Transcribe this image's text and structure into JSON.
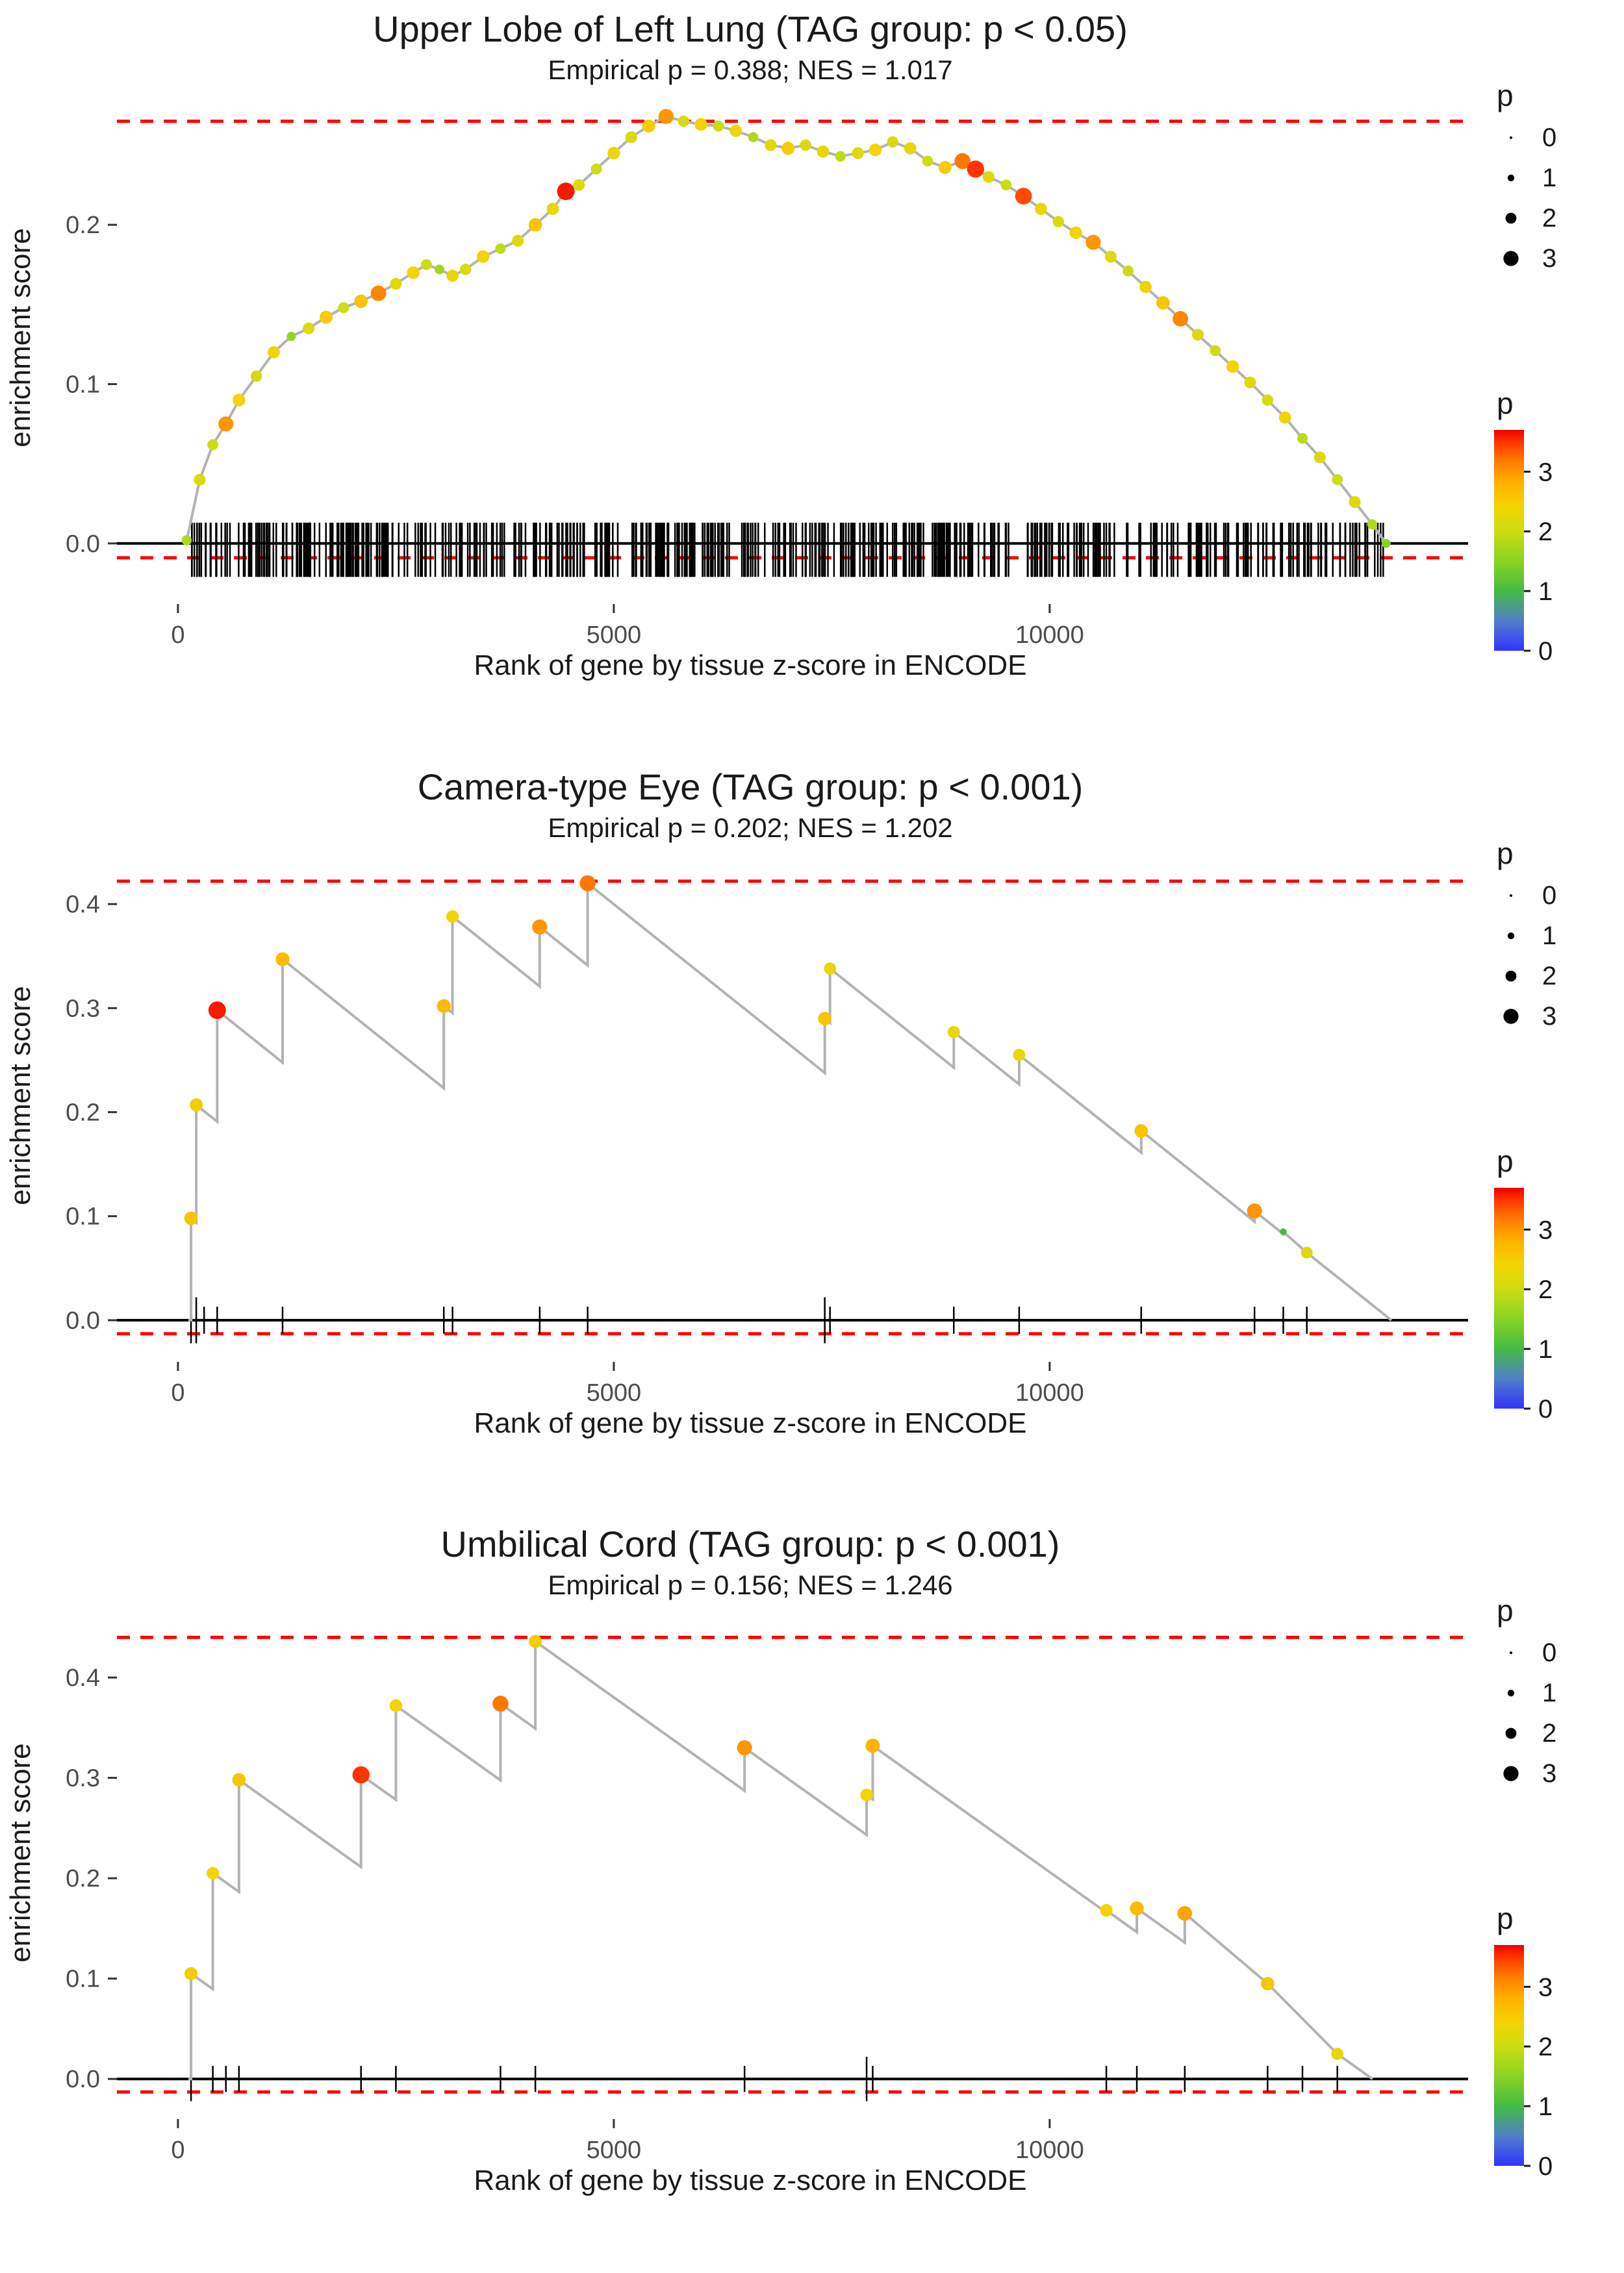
{
  "legend": {
    "size_title": "p",
    "size_items": [
      {
        "label": "0",
        "p": 0
      },
      {
        "label": "1",
        "p": 1
      },
      {
        "label": "2",
        "p": 2
      },
      {
        "label": "3",
        "p": 3
      }
    ],
    "color_title": "p",
    "color_ticks": [
      {
        "label": "3",
        "p": 3
      },
      {
        "label": "2",
        "p": 2
      },
      {
        "label": "1",
        "p": 1
      },
      {
        "label": "0",
        "p": 0
      }
    ]
  },
  "colors": {
    "dashed_line": "#ff0000",
    "zero_line": "#000000",
    "curve_line": "#b3b3b3",
    "rug": "#000000",
    "axis_text": "#4d4d4d",
    "tick_mark": "#333333",
    "p_max": 3.7,
    "p_scale_stops": [
      {
        "p": 0.0,
        "color": "#3333ff"
      },
      {
        "p": 0.5,
        "color": "#4f7fc9"
      },
      {
        "p": 1.0,
        "color": "#44bb44"
      },
      {
        "p": 1.5,
        "color": "#88d422"
      },
      {
        "p": 2.0,
        "color": "#ccdd11"
      },
      {
        "p": 2.4,
        "color": "#f2d500"
      },
      {
        "p": 2.8,
        "color": "#ffb300"
      },
      {
        "p": 3.2,
        "color": "#ff7700"
      },
      {
        "p": 3.5,
        "color": "#ff3300"
      },
      {
        "p": 3.7,
        "color": "#ee0000"
      }
    ]
  },
  "chart_data": [
    {
      "type": "line",
      "title": "Upper Lobe of Left Lung (TAG group: p < 0.05)",
      "subtitle": "Empirical p = 0.388; NES = 1.017",
      "xlabel": "Rank of gene by tissue z-score in ENCODE",
      "ylabel": "enrichment score",
      "xlim": [
        -700,
        14800
      ],
      "ylim": [
        -0.038,
        0.282
      ],
      "xticks": [
        {
          "v": 0,
          "label": "0"
        },
        {
          "v": 5000,
          "label": "5000"
        },
        {
          "v": 10000,
          "label": "10000"
        }
      ],
      "yticks": [
        {
          "v": 0.0,
          "label": "0.0"
        },
        {
          "v": 0.1,
          "label": "0.1"
        },
        {
          "v": 0.2,
          "label": "0.2"
        }
      ],
      "hline_top": 0.265,
      "hline_bottom": -0.009,
      "line_type": "polyline",
      "points_format": [
        "rank",
        "enrichment_score",
        "p"
      ],
      "points": [
        [
          100,
          0.002,
          1.8
        ],
        [
          250,
          0.04,
          2.2
        ],
        [
          400,
          0.062,
          2.0
        ],
        [
          550,
          0.075,
          3.0
        ],
        [
          700,
          0.09,
          2.4
        ],
        [
          900,
          0.105,
          2.1
        ],
        [
          1100,
          0.12,
          2.3
        ],
        [
          1300,
          0.13,
          1.6
        ],
        [
          1500,
          0.135,
          2.2
        ],
        [
          1700,
          0.142,
          2.5
        ],
        [
          1900,
          0.148,
          2.0
        ],
        [
          2100,
          0.152,
          2.6
        ],
        [
          2300,
          0.157,
          3.1
        ],
        [
          2500,
          0.163,
          2.2
        ],
        [
          2700,
          0.17,
          2.4
        ],
        [
          2850,
          0.175,
          2.0
        ],
        [
          3000,
          0.172,
          1.7
        ],
        [
          3150,
          0.168,
          2.3
        ],
        [
          3300,
          0.172,
          2.1
        ],
        [
          3500,
          0.18,
          2.4
        ],
        [
          3700,
          0.185,
          1.9
        ],
        [
          3900,
          0.19,
          2.2
        ],
        [
          4100,
          0.2,
          2.6
        ],
        [
          4300,
          0.21,
          2.3
        ],
        [
          4450,
          0.221,
          3.6
        ],
        [
          4600,
          0.225,
          2.2
        ],
        [
          4800,
          0.235,
          2.0
        ],
        [
          5000,
          0.245,
          2.4
        ],
        [
          5200,
          0.255,
          2.2
        ],
        [
          5400,
          0.262,
          2.5
        ],
        [
          5600,
          0.268,
          3.0
        ],
        [
          5800,
          0.265,
          2.1
        ],
        [
          6000,
          0.263,
          2.4
        ],
        [
          6200,
          0.262,
          2.0
        ],
        [
          6400,
          0.259,
          2.3
        ],
        [
          6600,
          0.255,
          1.8
        ],
        [
          6800,
          0.25,
          2.2
        ],
        [
          7000,
          0.248,
          2.5
        ],
        [
          7200,
          0.25,
          2.1
        ],
        [
          7400,
          0.246,
          2.3
        ],
        [
          7600,
          0.243,
          1.9
        ],
        [
          7800,
          0.245,
          2.2
        ],
        [
          8000,
          0.247,
          2.4
        ],
        [
          8200,
          0.252,
          2.1
        ],
        [
          8400,
          0.248,
          2.3
        ],
        [
          8600,
          0.24,
          2.0
        ],
        [
          8800,
          0.236,
          2.5
        ],
        [
          9000,
          0.24,
          3.2
        ],
        [
          9150,
          0.235,
          3.5
        ],
        [
          9300,
          0.23,
          2.2
        ],
        [
          9500,
          0.225,
          2.0
        ],
        [
          9700,
          0.218,
          3.4
        ],
        [
          9900,
          0.21,
          2.3
        ],
        [
          10100,
          0.202,
          2.1
        ],
        [
          10300,
          0.195,
          2.4
        ],
        [
          10500,
          0.189,
          3.0
        ],
        [
          10700,
          0.18,
          2.2
        ],
        [
          10900,
          0.171,
          2.0
        ],
        [
          11100,
          0.161,
          2.3
        ],
        [
          11300,
          0.151,
          2.6
        ],
        [
          11500,
          0.141,
          3.1
        ],
        [
          11700,
          0.131,
          2.2
        ],
        [
          11900,
          0.121,
          2.0
        ],
        [
          12100,
          0.111,
          2.4
        ],
        [
          12300,
          0.101,
          2.2
        ],
        [
          12500,
          0.09,
          2.1
        ],
        [
          12700,
          0.079,
          2.3
        ],
        [
          12900,
          0.066,
          1.9
        ],
        [
          13100,
          0.054,
          2.2
        ],
        [
          13300,
          0.04,
          2.0
        ],
        [
          13500,
          0.026,
          2.2
        ],
        [
          13700,
          0.012,
          1.8
        ],
        [
          13860,
          0.0,
          1.5
        ]
      ],
      "rug": {
        "mode": "dense",
        "count": 520,
        "min": 150,
        "max": 13860,
        "seed": 11,
        "center": -0.004,
        "half_height": 0.017
      }
    },
    {
      "type": "line",
      "title": "Camera-type Eye (TAG group: p < 0.001)",
      "subtitle": "Empirical p = 0.202; NES = 1.202",
      "xlabel": "Rank of gene by tissue z-score in ENCODE",
      "ylabel": "enrichment score",
      "xlim": [
        -700,
        14800
      ],
      "ylim": [
        -0.04,
        0.45
      ],
      "xticks": [
        {
          "v": 0,
          "label": "0"
        },
        {
          "v": 5000,
          "label": "5000"
        },
        {
          "v": 10000,
          "label": "10000"
        }
      ],
      "yticks": [
        {
          "v": 0.0,
          "label": "0.0"
        },
        {
          "v": 0.1,
          "label": "0.1"
        },
        {
          "v": 0.2,
          "label": "0.2"
        },
        {
          "v": 0.3,
          "label": "0.3"
        },
        {
          "v": 0.4,
          "label": "0.4"
        }
      ],
      "hline_top": 0.422,
      "hline_bottom": -0.013,
      "line_type": "sawtooth",
      "slope": 6.7e-05,
      "points_format": [
        "rank",
        "enrichment_score",
        "p"
      ],
      "points": [
        [
          150,
          0.098,
          2.6
        ],
        [
          210,
          0.207,
          2.5
        ],
        [
          450,
          0.298,
          3.6
        ],
        [
          1200,
          0.347,
          2.7
        ],
        [
          3050,
          0.302,
          2.7
        ],
        [
          3150,
          0.388,
          2.4
        ],
        [
          4150,
          0.378,
          3.0
        ],
        [
          4700,
          0.42,
          3.2
        ],
        [
          7420,
          0.29,
          2.6
        ],
        [
          7480,
          0.338,
          2.3
        ],
        [
          8900,
          0.277,
          2.3
        ],
        [
          9650,
          0.255,
          2.3
        ],
        [
          11050,
          0.182,
          2.6
        ],
        [
          12350,
          0.105,
          3.0
        ],
        [
          12680,
          0.085,
          1.0
        ],
        [
          12950,
          0.065,
          2.2
        ]
      ],
      "rug": {
        "mode": "list",
        "center": 0,
        "half_height": 0.013,
        "positions": [
          150,
          210,
          300,
          450,
          1200,
          3050,
          3150,
          4150,
          4700,
          7420,
          7480,
          8900,
          9650,
          11050,
          12350,
          12680,
          12950
        ],
        "tall_positions": [
          150,
          210,
          7420
        ]
      }
    },
    {
      "type": "line",
      "title": "Umbilical Cord (TAG group: p < 0.001)",
      "subtitle": "Empirical p = 0.156; NES = 1.246",
      "xlabel": "Rank of gene by tissue z-score in ENCODE",
      "ylabel": "enrichment score",
      "xlim": [
        -700,
        14800
      ],
      "ylim": [
        -0.04,
        0.468
      ],
      "xticks": [
        {
          "v": 0,
          "label": "0"
        },
        {
          "v": 5000,
          "label": "5000"
        },
        {
          "v": 10000,
          "label": "10000"
        }
      ],
      "yticks": [
        {
          "v": 0.0,
          "label": "0.0"
        },
        {
          "v": 0.1,
          "label": "0.1"
        },
        {
          "v": 0.2,
          "label": "0.2"
        },
        {
          "v": 0.3,
          "label": "0.3"
        },
        {
          "v": 0.4,
          "label": "0.4"
        }
      ],
      "hline_top": 0.44,
      "hline_bottom": -0.013,
      "line_type": "sawtooth",
      "slope": 6.2e-05,
      "points_format": [
        "rank",
        "enrichment_score",
        "p"
      ],
      "points": [
        [
          150,
          0.105,
          2.5
        ],
        [
          400,
          0.205,
          2.4
        ],
        [
          700,
          0.298,
          2.6
        ],
        [
          2100,
          0.303,
          3.5
        ],
        [
          2500,
          0.372,
          2.4
        ],
        [
          3700,
          0.374,
          3.2
        ],
        [
          4100,
          0.436,
          2.5
        ],
        [
          6500,
          0.33,
          3.0
        ],
        [
          7900,
          0.283,
          2.4
        ],
        [
          7970,
          0.332,
          2.8
        ],
        [
          10650,
          0.168,
          2.4
        ],
        [
          11000,
          0.17,
          2.7
        ],
        [
          11550,
          0.165,
          2.9
        ],
        [
          12500,
          0.095,
          2.6
        ],
        [
          13300,
          0.025,
          2.3
        ]
      ],
      "rug": {
        "mode": "list",
        "center": 0,
        "half_height": 0.013,
        "positions": [
          150,
          400,
          550,
          700,
          2100,
          2500,
          3700,
          4100,
          6500,
          7900,
          7970,
          10650,
          11000,
          11550,
          12500,
          12900,
          13300
        ],
        "tall_positions": [
          150,
          7900
        ]
      }
    }
  ]
}
